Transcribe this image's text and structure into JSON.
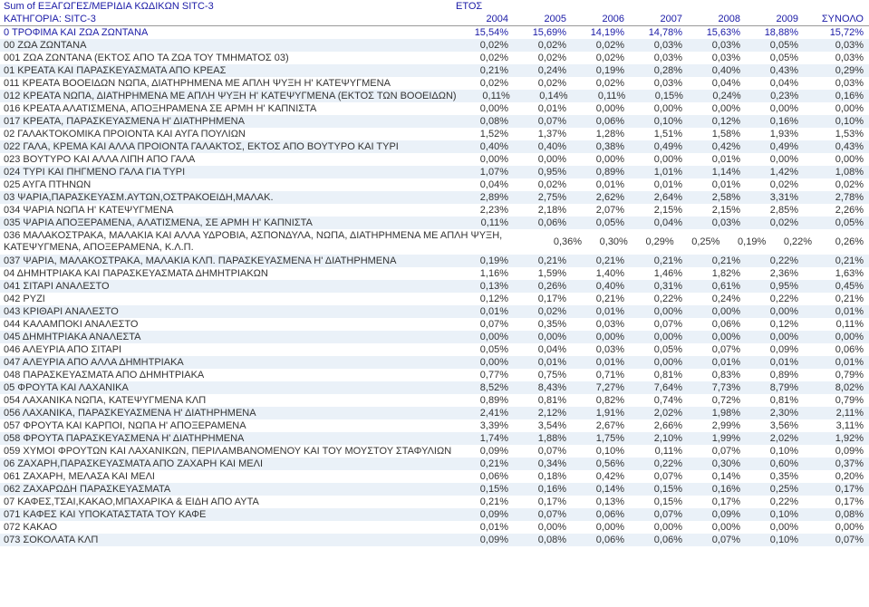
{
  "header": {
    "sum_label": "Sum of ΕΞΑΓΩΓΕΣ/ΜΕΡΙΔΙΑ ΚΩΔΙΚΩΝ SITC-3",
    "year_label": "ΕΤΟΣ",
    "category_label": "ΚΑΤΗΓΟΡΙΑ: SITC-3",
    "years": [
      "2004",
      "2005",
      "2006",
      "2007",
      "2008",
      "2009"
    ],
    "total_label": "ΣΥΝΟΛΟ"
  },
  "colors": {
    "heading": "#1a1aa6",
    "text": "#333333",
    "shade": "#eaf1f8",
    "border": "#999999",
    "background": "#ffffff"
  },
  "rows": [
    {
      "level": 0,
      "shade": false,
      "label": "0 ΤΡΟΦΙΜΑ ΚΑΙ ΖΩΑ ΖΩΝΤΑΝΑ",
      "v": [
        "15,54%",
        "15,69%",
        "14,19%",
        "14,78%",
        "15,63%",
        "18,88%",
        "15,72%"
      ]
    },
    {
      "level": 1,
      "shade": true,
      "label": "00 ΖΩΑ ΖΩΝΤΑΝΑ",
      "v": [
        "0,02%",
        "0,02%",
        "0,02%",
        "0,03%",
        "0,03%",
        "0,05%",
        "0,03%"
      ]
    },
    {
      "level": 2,
      "shade": false,
      "label": "001 ΖΩΑ ΖΩΝΤΑΝΑ (ΕΚΤΟΣ ΑΠΟ ΤΑ ΖΩΑ ΤΟΥ ΤΜΗΜΑΤΟΣ 03)",
      "v": [
        "0,02%",
        "0,02%",
        "0,02%",
        "0,03%",
        "0,03%",
        "0,05%",
        "0,03%"
      ]
    },
    {
      "level": 1,
      "shade": true,
      "label": "01 ΚΡΕΑΤΑ ΚΑΙ ΠΑΡΑΣΚΕΥΑΣΜΑΤΑ ΑΠΟ ΚΡΕΑΣ",
      "v": [
        "0,21%",
        "0,24%",
        "0,19%",
        "0,28%",
        "0,40%",
        "0,43%",
        "0,29%"
      ]
    },
    {
      "level": 2,
      "shade": false,
      "label": "011 ΚΡΕΑΤΑ ΒΟΟΕΙΔΩΝ ΝΩΠΑ, ΔΙΑΤΗΡΗΜΕΝΑ ΜΕ ΑΠΛΗ ΨΥΞΗ Η' ΚΑΤΕΨΥΓΜΕΝΑ",
      "v": [
        "0,02%",
        "0,02%",
        "0,02%",
        "0,03%",
        "0,04%",
        "0,04%",
        "0,03%"
      ]
    },
    {
      "level": 2,
      "shade": true,
      "label": "012 ΚΡΕΑΤΑ ΝΩΠΑ, ΔΙΑΤΗΡΗΜΕΝΑ ΜΕ ΑΠΛΗ ΨΥΞΗ Η' ΚΑΤΕΨΥΓΜΕΝΑ (ΕΚΤΟΣ ΤΩΝ ΒΟΟΕΙΔΩΝ)",
      "v": [
        "0,11%",
        "0,14%",
        "0,11%",
        "0,15%",
        "0,24%",
        "0,23%",
        "0,16%"
      ]
    },
    {
      "level": 2,
      "shade": false,
      "label": "016 ΚΡΕΑΤΑ ΑΛΑΤΙΣΜΕΝΑ, ΑΠΟΞΗΡΑΜΕΝΑ ΣΕ ΑΡΜΗ Η' ΚΑΠΝΙΣΤΑ",
      "v": [
        "0,00%",
        "0,01%",
        "0,00%",
        "0,00%",
        "0,00%",
        "0,00%",
        "0,00%"
      ]
    },
    {
      "level": 2,
      "shade": true,
      "label": "017 ΚΡΕΑΤΑ, ΠΑΡΑΣΚΕΥΑΣΜΕΝΑ Η' ΔΙΑΤΗΡΗΜΕΝΑ",
      "v": [
        "0,08%",
        "0,07%",
        "0,06%",
        "0,10%",
        "0,12%",
        "0,16%",
        "0,10%"
      ]
    },
    {
      "level": 1,
      "shade": false,
      "label": "02 ΓΑΛΑΚΤΟΚΟΜΙΚΑ ΠΡΟΙΟΝΤΑ ΚΑΙ ΑΥΓΑ ΠΟΥΛΙΩΝ",
      "v": [
        "1,52%",
        "1,37%",
        "1,28%",
        "1,51%",
        "1,58%",
        "1,93%",
        "1,53%"
      ]
    },
    {
      "level": 2,
      "shade": true,
      "label": "022 ΓΑΛΑ,  ΚΡΕΜΑ ΚΑΙ ΑΛΛΑ ΠΡΟΙΟΝΤΑ ΓΑΛΑΚΤΟΣ, ΕΚΤΟΣ ΑΠΟ ΒΟΥΤΥΡΟ  ΚΑΙ ΤΥΡΙ",
      "v": [
        "0,40%",
        "0,40%",
        "0,38%",
        "0,49%",
        "0,42%",
        "0,49%",
        "0,43%"
      ]
    },
    {
      "level": 2,
      "shade": false,
      "label": "023 ΒΟΥΤΥΡΟ ΚΑΙ ΑΛΛΑ ΛΙΠΗ ΑΠΟ ΓΑΛΑ",
      "v": [
        "0,00%",
        "0,00%",
        "0,00%",
        "0,00%",
        "0,01%",
        "0,00%",
        "0,00%"
      ]
    },
    {
      "level": 2,
      "shade": true,
      "label": "024 ΤΥΡΙ ΚΑΙ ΠΗΓΜΕΝΟ ΓΑΛΑ ΓΙΑ ΤΥΡΙ",
      "v": [
        "1,07%",
        "0,95%",
        "0,89%",
        "1,01%",
        "1,14%",
        "1,42%",
        "1,08%"
      ]
    },
    {
      "level": 2,
      "shade": false,
      "label": "025 ΑΥΓΑ ΠΤΗΝΩΝ",
      "v": [
        "0,04%",
        "0,02%",
        "0,01%",
        "0,01%",
        "0,01%",
        "0,02%",
        "0,02%"
      ]
    },
    {
      "level": 1,
      "shade": true,
      "label": "03 ΨΑΡΙΑ,ΠΑΡΑΣΚΕΥΑΣΜ.ΑΥΤΩΝ,ΟΣΤΡΑΚΟΕΙΔΗ,ΜΑΛΑΚ.",
      "v": [
        "2,89%",
        "2,75%",
        "2,62%",
        "2,64%",
        "2,58%",
        "3,31%",
        "2,78%"
      ]
    },
    {
      "level": 2,
      "shade": false,
      "label": "034 ΨΑΡΙΑ ΝΩΠΑ Η' ΚΑΤΕΨΥΓΜΕΝΑ",
      "v": [
        "2,23%",
        "2,18%",
        "2,07%",
        "2,15%",
        "2,15%",
        "2,85%",
        "2,26%"
      ]
    },
    {
      "level": 2,
      "shade": true,
      "label": "035 ΨΑΡΙΑ ΑΠΟΞΕΡΑΜΕΝΑ, ΑΛΑΤΙΣΜΕΝΑ, ΣΕ ΑΡΜΗ Η' ΚΑΠΝΙΣΤΑ",
      "v": [
        "0,11%",
        "0,06%",
        "0,05%",
        "0,04%",
        "0,03%",
        "0,02%",
        "0,05%"
      ]
    },
    {
      "level": 2,
      "shade": false,
      "label": "036 ΜΑΛΑΚΟΣΤΡΑΚΑ,  ΜΑΛΑΚΙΑ  ΚΑΙ  ΑΛΛΑ  ΥΔΡΟΒΙΑ,  ΑΣΠΟΝΔΥΛΑ,  ΝΩΠΑ, ΔΙΑΤΗΡΗΜΕΝΑ ΜΕ ΑΠΛΗ ΨΥΞΗ, ΚΑΤΕΨΥΓΜΕΝΑ, ΑΠΟΞΕΡΑΜΕΝΑ, Κ.Λ.Π.",
      "v": [
        "0,36%",
        "0,30%",
        "0,29%",
        "0,25%",
        "0,19%",
        "0,22%",
        "0,26%"
      ],
      "multiline": true
    },
    {
      "level": 2,
      "shade": true,
      "label": "037 ΨΑΡΙΑ, ΜΑΛΑΚΟΣΤΡΑΚΑ, ΜΑΛΑΚΙΑ ΚΛΠ. ΠΑΡΑΣΚΕΥΑΣΜΕΝΑ Η' ΔΙΑΤΗΡΗΜΕΝΑ",
      "v": [
        "0,19%",
        "0,21%",
        "0,21%",
        "0,21%",
        "0,21%",
        "0,22%",
        "0,21%"
      ]
    },
    {
      "level": 1,
      "shade": false,
      "label": "04 ΔΗΜΗΤΡΙΑΚΑ ΚΑΙ ΠΑΡΑΣΚΕΥΑΣΜΑΤΑ ΔΗΜΗΤΡΙΑΚΩΝ",
      "v": [
        "1,16%",
        "1,59%",
        "1,40%",
        "1,46%",
        "1,82%",
        "2,36%",
        "1,63%"
      ]
    },
    {
      "level": 2,
      "shade": true,
      "label": "041 ΣΙΤΑΡΙ ΑΝΑΛΕΣΤΟ",
      "v": [
        "0,13%",
        "0,26%",
        "0,40%",
        "0,31%",
        "0,61%",
        "0,95%",
        "0,45%"
      ]
    },
    {
      "level": 2,
      "shade": false,
      "label": "042 ΡΥΖΙ",
      "v": [
        "0,12%",
        "0,17%",
        "0,21%",
        "0,22%",
        "0,24%",
        "0,22%",
        "0,21%"
      ]
    },
    {
      "level": 2,
      "shade": true,
      "label": "043 ΚΡΙΘΑΡΙ ΑΝΑΛΕΣΤΟ",
      "v": [
        "0,01%",
        "0,02%",
        "0,01%",
        "0,00%",
        "0,00%",
        "0,00%",
        "0,01%"
      ]
    },
    {
      "level": 2,
      "shade": false,
      "label": "044 ΚΑΛΑΜΠΟΚΙ ΑΝΑΛΕΣΤΟ",
      "v": [
        "0,07%",
        "0,35%",
        "0,03%",
        "0,07%",
        "0,06%",
        "0,12%",
        "0,11%"
      ]
    },
    {
      "level": 2,
      "shade": true,
      "label": "045 ΔΗΜΗΤΡΙΑΚΑ ΑΝΑΛΕΣΤΑ",
      "v": [
        "0,00%",
        "0,00%",
        "0,00%",
        "0,00%",
        "0,00%",
        "0,00%",
        "0,00%"
      ]
    },
    {
      "level": 2,
      "shade": false,
      "label": "046 ΑΛΕΥΡΙΑ ΑΠΟ ΣΙΤΑΡΙ",
      "v": [
        "0,05%",
        "0,04%",
        "0,03%",
        "0,05%",
        "0,07%",
        "0,09%",
        "0,06%"
      ]
    },
    {
      "level": 2,
      "shade": true,
      "label": "047 ΑΛΕΥΡΙΑ ΑΠΟ ΑΛΛΑ ΔΗΜΗΤΡΙΑΚΑ",
      "v": [
        "0,00%",
        "0,01%",
        "0,01%",
        "0,00%",
        "0,01%",
        "0,01%",
        "0,01%"
      ]
    },
    {
      "level": 2,
      "shade": false,
      "label": "048 ΠΑΡΑΣΚΕΥΑΣΜΑΤΑ ΑΠΟ ΔΗΜΗΤΡΙΑΚΑ",
      "v": [
        "0,77%",
        "0,75%",
        "0,71%",
        "0,81%",
        "0,83%",
        "0,89%",
        "0,79%"
      ]
    },
    {
      "level": 1,
      "shade": true,
      "label": "05 ΦΡΟΥΤΑ ΚΑΙ ΛΑΧΑΝΙΚΑ",
      "v": [
        "8,52%",
        "8,43%",
        "7,27%",
        "7,64%",
        "7,73%",
        "8,79%",
        "8,02%"
      ]
    },
    {
      "level": 2,
      "shade": false,
      "label": "054 ΛΑΧΑΝΙΚΑ ΝΩΠΑ, ΚΑΤΕΨΥΓΜΕΝΑ ΚΛΠ",
      "v": [
        "0,89%",
        "0,81%",
        "0,82%",
        "0,74%",
        "0,72%",
        "0,81%",
        "0,79%"
      ]
    },
    {
      "level": 2,
      "shade": true,
      "label": "056 ΛΑΧΑΝΙΚΑ, ΠΑΡΑΣΚΕΥΑΣΜΕΝΑ Η' ΔΙΑΤΗΡΗΜΕΝΑ",
      "v": [
        "2,41%",
        "2,12%",
        "1,91%",
        "2,02%",
        "1,98%",
        "2,30%",
        "2,11%"
      ]
    },
    {
      "level": 2,
      "shade": false,
      "label": "057 ΦΡΟΥΤΑ ΚΑΙ ΚΑΡΠΟΙ, ΝΩΠΑ Η' ΑΠΟΞΕΡΑΜΕΝΑ",
      "v": [
        "3,39%",
        "3,54%",
        "2,67%",
        "2,66%",
        "2,99%",
        "3,56%",
        "3,11%"
      ]
    },
    {
      "level": 2,
      "shade": true,
      "label": "058 ΦΡΟΥΤΑ ΠΑΡΑΣΚΕΥΑΣΜΕΝΑ Η' ΔΙΑΤΗΡΗΜΕΝΑ",
      "v": [
        "1,74%",
        "1,88%",
        "1,75%",
        "2,10%",
        "1,99%",
        "2,02%",
        "1,92%"
      ]
    },
    {
      "level": 2,
      "shade": false,
      "label": "059 ΧΥΜΟΙ  ΦΡΟΥΤΩΝ  ΚΑΙ ΛΑΧΑΝΙΚΩΝ, ΠΕΡΙΛΑΜΒΑΝΟΜΕΝΟΥ ΚΑΙ ΤΟΥ  ΜΟΥΣΤΟΥ ΣΤΑΦΥΛΙΩΝ",
      "v": [
        "0,09%",
        "0,07%",
        "0,10%",
        "0,11%",
        "0,07%",
        "0,10%",
        "0,09%"
      ]
    },
    {
      "level": 1,
      "shade": true,
      "label": "06 ΖΑΧΑΡΗ,ΠΑΡΑΣΚΕΥΑΣΜΑΤΑ ΑΠΟ ΖΑΧΑΡΗ ΚΑΙ ΜΕΛΙ",
      "v": [
        "0,21%",
        "0,34%",
        "0,56%",
        "0,22%",
        "0,30%",
        "0,60%",
        "0,37%"
      ]
    },
    {
      "level": 2,
      "shade": false,
      "label": "061 ΖΑΧΑΡΗ, ΜΕΛΑΣΑ ΚΑΙ ΜΕΛΙ",
      "v": [
        "0,06%",
        "0,18%",
        "0,42%",
        "0,07%",
        "0,14%",
        "0,35%",
        "0,20%"
      ]
    },
    {
      "level": 2,
      "shade": true,
      "label": "062 ΖΑΧΑΡΩΔΗ ΠΑΡΑΣΚΕΥΑΣΜΑΤΑ",
      "v": [
        "0,15%",
        "0,16%",
        "0,14%",
        "0,15%",
        "0,16%",
        "0,25%",
        "0,17%"
      ]
    },
    {
      "level": 1,
      "shade": false,
      "label": "07 ΚΑΦΕΣ,ΤΣΑΙ,ΚΑΚΑΟ,ΜΠΑΧΑΡΙΚΑ & ΕΙΔΗ ΑΠΟ ΑΥΤΑ",
      "v": [
        "0,21%",
        "0,17%",
        "0,13%",
        "0,15%",
        "0,17%",
        "0,22%",
        "0,17%"
      ]
    },
    {
      "level": 2,
      "shade": true,
      "label": "071 ΚΑΦΕΣ ΚΑΙ ΥΠΟΚΑΤΑΣΤΑΤΑ ΤΟΥ ΚΑΦΕ",
      "v": [
        "0,09%",
        "0,07%",
        "0,06%",
        "0,07%",
        "0,09%",
        "0,10%",
        "0,08%"
      ]
    },
    {
      "level": 2,
      "shade": false,
      "label": "072 ΚΑΚΑΟ",
      "v": [
        "0,01%",
        "0,00%",
        "0,00%",
        "0,00%",
        "0,00%",
        "0,00%",
        "0,00%"
      ]
    },
    {
      "level": 2,
      "shade": true,
      "label": "073 ΣΟΚΟΛΑΤΑ ΚΛΠ",
      "v": [
        "0,09%",
        "0,08%",
        "0,06%",
        "0,06%",
        "0,07%",
        "0,10%",
        "0,07%"
      ]
    }
  ]
}
